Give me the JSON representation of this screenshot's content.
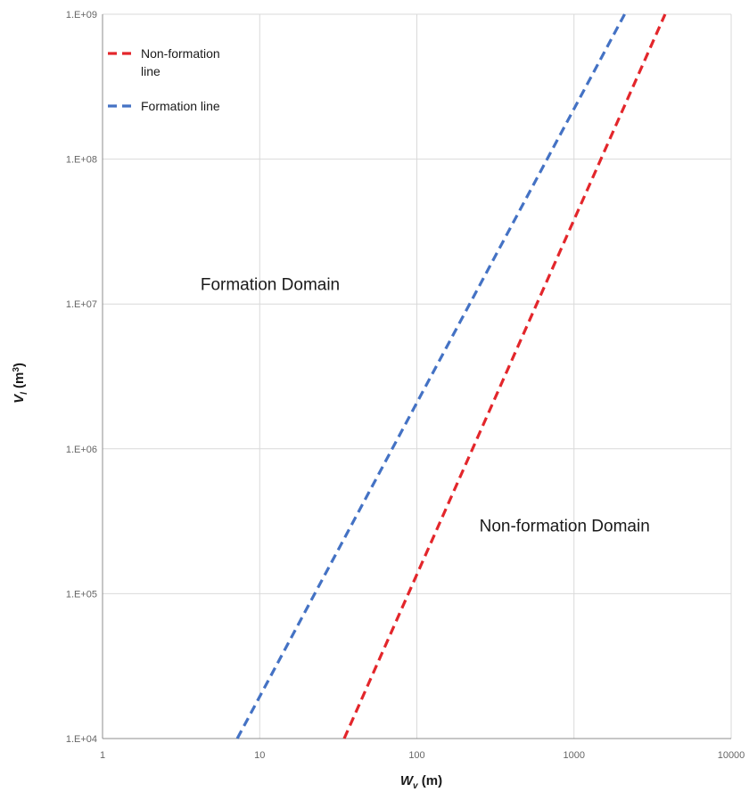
{
  "chart_data": {
    "type": "line",
    "x_scale": "log",
    "y_scale": "log",
    "xlim": [
      1,
      10000
    ],
    "ylim": [
      10000,
      1000000000
    ],
    "grid": true,
    "x_ticks": [
      {
        "value": 1,
        "label": "1"
      },
      {
        "value": 10,
        "label": "10"
      },
      {
        "value": 100,
        "label": "100"
      },
      {
        "value": 1000,
        "label": "1000"
      },
      {
        "value": 10000,
        "label": "10000"
      }
    ],
    "y_ticks": [
      {
        "value": 10000,
        "label": "1.E+04"
      },
      {
        "value": 100000,
        "label": "1.E+05"
      },
      {
        "value": 1000000,
        "label": "1.E+06"
      },
      {
        "value": 10000000,
        "label": "1.E+07"
      },
      {
        "value": 100000000,
        "label": "1.E+08"
      },
      {
        "value": 1000000000,
        "label": "1.E+09"
      }
    ],
    "xlabel": {
      "main": "W",
      "sub": "v",
      "unit": " (m)"
    },
    "ylabel": {
      "main": "V",
      "sub": "l",
      "unit": " (m",
      "sup": "3",
      "close": ")"
    },
    "legend_position": "top-left",
    "series": [
      {
        "name": "Non-formation line",
        "legend_lines": [
          "Non-formation",
          "line"
        ],
        "color": "#e3262b",
        "dash": true,
        "x": [
          34.5,
          3800
        ],
        "y": [
          10000,
          1000000000
        ]
      },
      {
        "name": "Formation line",
        "legend_lines": [
          "Formation line"
        ],
        "color": "#4472c4",
        "dash": true,
        "x": [
          7.2,
          2100
        ],
        "y": [
          10000,
          1000000000
        ]
      }
    ],
    "annotations": [
      {
        "text": "Formation Domain",
        "x": 4.2,
        "y": 12500000
      },
      {
        "text": "Non-formation Domain",
        "x": 250,
        "y": 270000
      }
    ]
  }
}
